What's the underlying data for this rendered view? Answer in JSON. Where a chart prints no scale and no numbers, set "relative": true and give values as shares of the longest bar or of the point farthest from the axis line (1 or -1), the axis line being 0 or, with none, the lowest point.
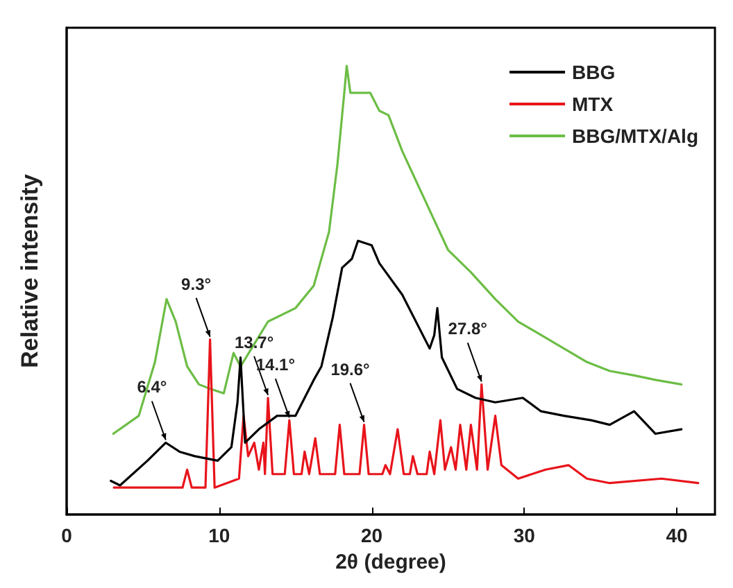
{
  "chart_data": {
    "type": "line",
    "relative": true,
    "xlabel": "2θ (degree)",
    "ylabel": "Relative intensity",
    "xlim": [
      0,
      42.5
    ],
    "xticks": [
      0,
      10,
      20,
      30,
      40
    ],
    "legend": "top right",
    "grid": false,
    "line_style": "solid",
    "annotations": [
      {
        "text": "6.4°",
        "x": 6.5,
        "y": 0.16
      },
      {
        "text": "9.3°",
        "x": 9.4,
        "y": 0.39
      },
      {
        "text": "13.7°",
        "x": 13.2,
        "y": 0.26
      },
      {
        "text": "14.1°",
        "x": 14.6,
        "y": 0.21
      },
      {
        "text": "19.6°",
        "x": 19.5,
        "y": 0.2
      },
      {
        "text": "27.8°",
        "x": 27.2,
        "y": 0.29
      }
    ],
    "series": [
      {
        "name": "BBG",
        "color": "#000000",
        "x": [
          2.9,
          3.5,
          5.3,
          6.5,
          7.4,
          8.4,
          9.9,
          10.8,
          11.2,
          11.4,
          11.7,
          12.6,
          13.8,
          15.0,
          16.2,
          16.7,
          17.45,
          18.06,
          18.7,
          19.1,
          20.0,
          20.5,
          22.0,
          23.8,
          24.1,
          24.3,
          24.6,
          25.6,
          26.8,
          28.1,
          29.9,
          31.1,
          32.6,
          34.4,
          35.6,
          37.2,
          38.6,
          40.3
        ],
        "values": [
          0.075,
          0.065,
          0.12,
          0.16,
          0.14,
          0.13,
          0.12,
          0.15,
          0.25,
          0.35,
          0.16,
          0.19,
          0.22,
          0.22,
          0.3,
          0.33,
          0.44,
          0.55,
          0.57,
          0.61,
          0.6,
          0.56,
          0.49,
          0.37,
          0.4,
          0.46,
          0.35,
          0.28,
          0.26,
          0.25,
          0.26,
          0.23,
          0.22,
          0.21,
          0.2,
          0.23,
          0.18,
          0.19
        ]
      },
      {
        "name": "MTX",
        "color": "#e8141b",
        "x": [
          3.1,
          7.6,
          7.9,
          8.2,
          9.1,
          9.4,
          9.7,
          11.3,
          11.6,
          11.9,
          12.3,
          12.6,
          12.9,
          13.0,
          13.2,
          13.5,
          14.3,
          14.6,
          14.9,
          15.4,
          15.6,
          15.9,
          16.3,
          16.6,
          17.6,
          17.9,
          18.2,
          19.2,
          19.5,
          19.8,
          20.7,
          20.9,
          21.2,
          21.7,
          22.1,
          22.5,
          22.7,
          23.0,
          23.6,
          23.8,
          24.1,
          24.5,
          24.8,
          25.2,
          25.5,
          25.8,
          26.2,
          26.5,
          26.9,
          27.2,
          27.6,
          28.1,
          28.5,
          29.6,
          31.4,
          32.9,
          34.1,
          35.6,
          39.0,
          41.4
        ],
        "values": [
          0.06,
          0.06,
          0.1,
          0.06,
          0.06,
          0.39,
          0.06,
          0.08,
          0.22,
          0.13,
          0.16,
          0.1,
          0.16,
          0.09,
          0.26,
          0.09,
          0.09,
          0.21,
          0.09,
          0.09,
          0.14,
          0.09,
          0.17,
          0.09,
          0.09,
          0.2,
          0.09,
          0.09,
          0.2,
          0.09,
          0.09,
          0.11,
          0.09,
          0.19,
          0.09,
          0.09,
          0.13,
          0.09,
          0.09,
          0.14,
          0.09,
          0.21,
          0.1,
          0.15,
          0.1,
          0.2,
          0.1,
          0.2,
          0.1,
          0.29,
          0.1,
          0.22,
          0.11,
          0.08,
          0.1,
          0.11,
          0.08,
          0.07,
          0.08,
          0.07
        ]
      },
      {
        "name": "BBG/MTX/Alg",
        "color": "#6cbd45",
        "x": [
          3.06,
          4.73,
          5.79,
          6.55,
          7.15,
          7.9,
          8.67,
          9.42,
          10.3,
          10.94,
          11.4,
          12.3,
          13.2,
          15.0,
          16.2,
          17.2,
          17.75,
          18.2,
          18.36,
          18.6,
          19.9,
          20.5,
          21.1,
          22.0,
          23.5,
          25.0,
          26.5,
          28.1,
          29.6,
          31.1,
          32.6,
          34.1,
          35.6,
          37.2,
          38.6,
          40.3
        ],
        "values": [
          0.18,
          0.22,
          0.34,
          0.48,
          0.43,
          0.33,
          0.29,
          0.28,
          0.27,
          0.36,
          0.33,
          0.38,
          0.43,
          0.46,
          0.51,
          0.63,
          0.78,
          0.94,
          1,
          0.94,
          0.94,
          0.9,
          0.89,
          0.81,
          0.7,
          0.59,
          0.54,
          0.48,
          0.43,
          0.4,
          0.37,
          0.34,
          0.32,
          0.31,
          0.3,
          0.29
        ]
      }
    ]
  }
}
